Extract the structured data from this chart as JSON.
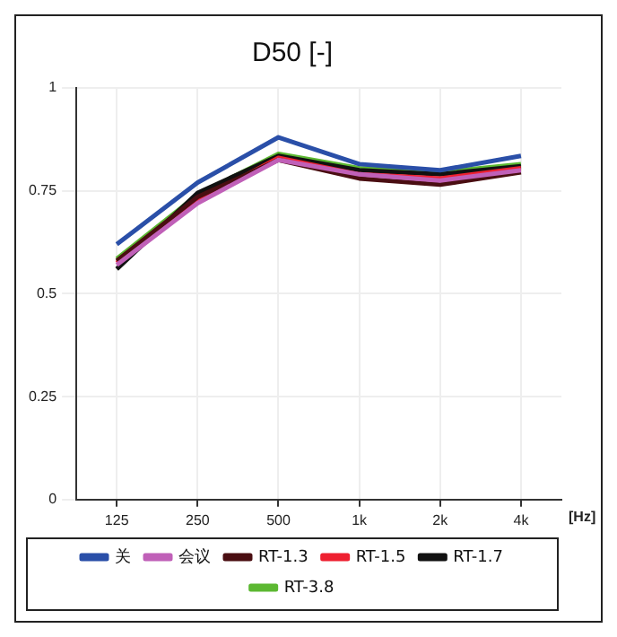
{
  "chart_data": {
    "type": "line",
    "title": "D50 [-]",
    "xlabel": "[Hz]",
    "categories": [
      "125",
      "250",
      "500",
      "1k",
      "2k",
      "4k"
    ],
    "series": [
      {
        "name": "关",
        "color": "#2a4fa8",
        "values": [
          0.62,
          0.77,
          0.88,
          0.815,
          0.8,
          0.835
        ]
      },
      {
        "name": "会议",
        "color": "#c060b8",
        "values": [
          0.57,
          0.72,
          0.825,
          0.79,
          0.775,
          0.8
        ]
      },
      {
        "name": "RT-1.3",
        "color": "#4a0e12",
        "values": [
          0.58,
          0.735,
          0.825,
          0.78,
          0.765,
          0.795
        ]
      },
      {
        "name": "RT-1.5",
        "color": "#ee2030",
        "values": [
          0.575,
          0.725,
          0.83,
          0.79,
          0.78,
          0.805
        ]
      },
      {
        "name": "RT-1.7",
        "color": "#111111",
        "values": [
          0.56,
          0.745,
          0.835,
          0.8,
          0.79,
          0.81
        ]
      },
      {
        "name": "RT-3.8",
        "color": "#5cb832",
        "values": [
          0.585,
          0.74,
          0.84,
          0.805,
          0.795,
          0.815
        ]
      }
    ],
    "ylim": [
      0,
      1
    ],
    "yticks": [
      0,
      0.25,
      0.5,
      0.75,
      1
    ],
    "grid": true,
    "legend": "bottom",
    "marker": "none",
    "line_style": "solid"
  }
}
